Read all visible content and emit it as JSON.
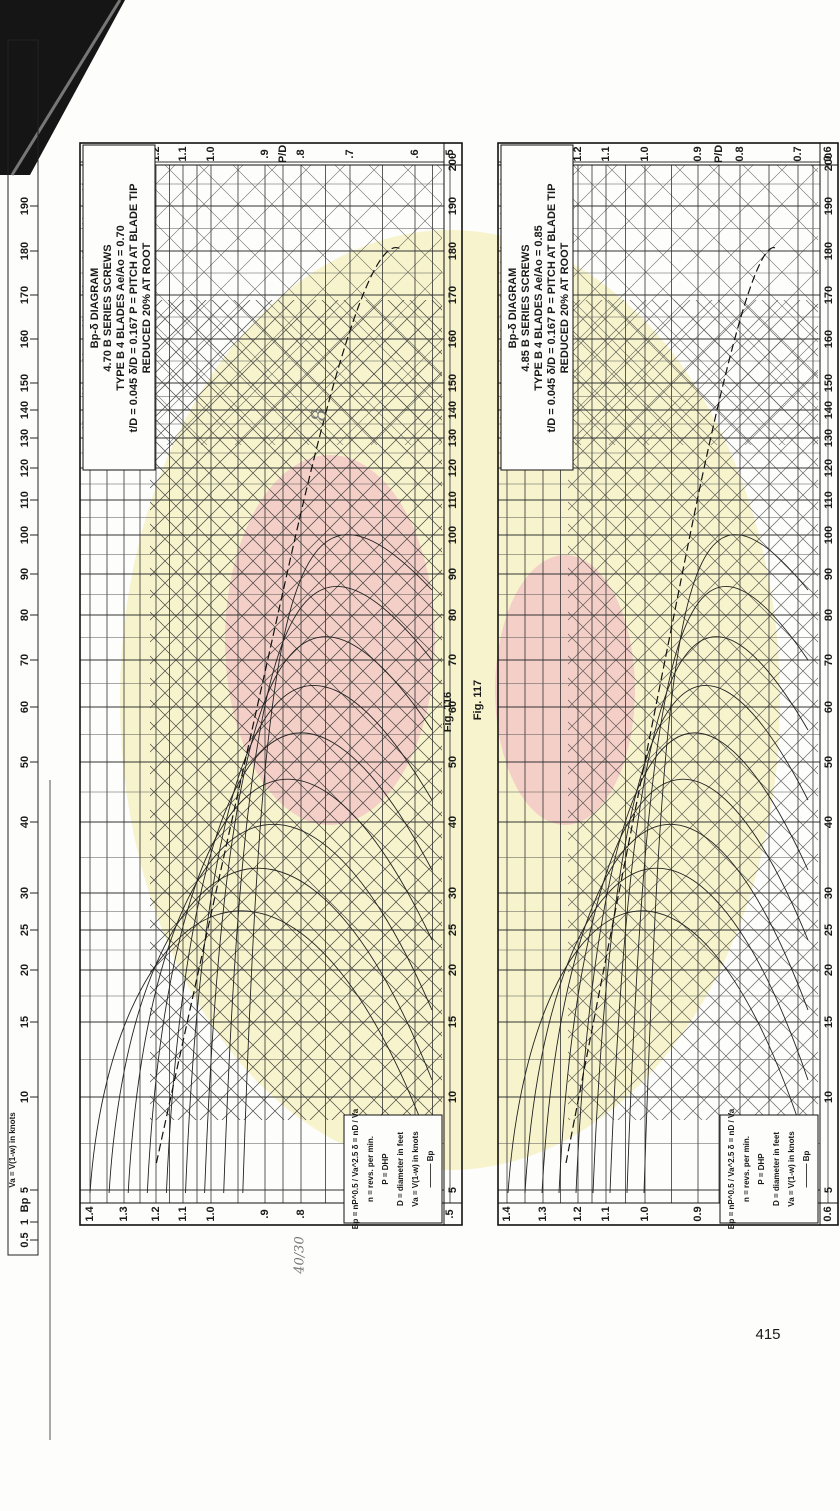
{
  "ruler": {
    "label": "Bp",
    "note": "Va = V(1-w) in knots",
    "values": [
      "0.5",
      "1",
      "5",
      "10",
      "15",
      "20",
      "25",
      "30",
      "40",
      "50",
      "60",
      "70",
      "80",
      "90",
      "100",
      "110",
      "120",
      "130",
      "140",
      "150",
      "160",
      "170",
      "180",
      "190"
    ]
  },
  "figures": [
    {
      "caption": "Fig. 116",
      "title": [
        "Bp-δ DIAGRAM",
        "4.70 B SERIES SCREWS",
        "TYPE B 4 BLADES Ae/Ao = 0.70",
        "t/D = 0.045  δ/D = 0.167  P = PITCH AT BLADE TIP",
        "REDUCED 20% AT ROOT"
      ],
      "ratio_label": "P/D",
      "pd_labels": [
        "1.4",
        "1.3",
        "1.2",
        "1.1",
        "1.0",
        ".9",
        ".8",
        ".7",
        ".6",
        ".5"
      ],
      "bp_labels": [
        "5",
        "10",
        "15",
        "20",
        "25",
        "30",
        "40",
        "50",
        "60",
        "70",
        "80",
        "90",
        "100",
        "110",
        "120",
        "130",
        "140",
        "150",
        "160",
        "170",
        "180",
        "190",
        "200"
      ],
      "legend": [
        "Bp = nP^0.5 / Va^2.5   δ = nD / Va",
        "n = revs. per min.",
        "P = DHP",
        "D = diameter in feet",
        "Va = V(1-w) in knots",
        "——— Bp"
      ]
    },
    {
      "caption": "Fig. 117",
      "title": [
        "Bp-δ DIAGRAM",
        "4.85 B SERIES SCREWS",
        "TYPE B 4 BLADES Ae/Ao = 0.85",
        "t/D = 0.045  δ/D = 0.167  P = PITCH AT BLADE TIP",
        "REDUCED 20% AT ROOT"
      ],
      "ratio_label": "P/D",
      "pd_labels": [
        "1.4",
        "1.3",
        "1.2",
        "1.1",
        "1.0",
        "0.9",
        "0.8",
        "0.7",
        "0.6"
      ],
      "bp_labels": [
        "5",
        "10",
        "15",
        "20",
        "25",
        "30",
        "40",
        "50",
        "60",
        "70",
        "80",
        "90",
        "100",
        "110",
        "120",
        "130",
        "140",
        "150",
        "160",
        "170",
        "180",
        "190",
        "200"
      ],
      "legend": [
        "Bp = nP^0.5 / Va^2.5   δ = nD / Va",
        "n = revs. per min.",
        "P = DHP",
        "D = diameter in feet",
        "Va = V(1-w) in knots",
        "——— Bp"
      ]
    }
  ],
  "handwriting": [
    "8",
    "40/30"
  ],
  "page_number": "415"
}
